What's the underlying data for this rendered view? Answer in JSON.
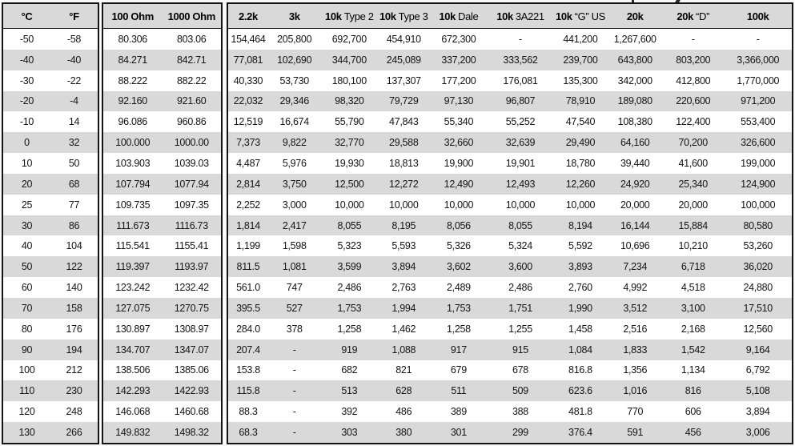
{
  "table": {
    "groups": [
      {
        "name": "temperature",
        "headers": [
          {
            "b": "°C",
            "r": ""
          },
          {
            "b": "°F",
            "r": ""
          }
        ],
        "col_start": 0,
        "col_count": 2
      },
      {
        "name": "rtd",
        "headers": [
          {
            "b": "100 Ohm",
            "r": ""
          },
          {
            "b": "1000 Ohm",
            "r": ""
          }
        ],
        "col_start": 2,
        "col_count": 2
      },
      {
        "name": "thermistor",
        "headers": [
          {
            "b": "2.2k",
            "r": ""
          },
          {
            "b": "3k",
            "r": ""
          },
          {
            "b": "10k",
            "r": "Type 2"
          },
          {
            "b": "10k",
            "r": "Type 3"
          },
          {
            "b": "10k",
            "r": "Dale"
          },
          {
            "b": "10k",
            "r": "3A221"
          },
          {
            "b": "10k",
            "r": "“G” US"
          },
          {
            "b": "20k",
            "r": ""
          },
          {
            "b": "20k",
            "r": "“D”"
          },
          {
            "b": "100k",
            "r": ""
          }
        ],
        "col_start": 4,
        "col_count": 10
      }
    ],
    "rows": [
      [
        "-50",
        "-58",
        "80.306",
        "803.06",
        "154,464",
        "205,800",
        "692,700",
        "454,910",
        "672,300",
        "-",
        "441,200",
        "1,267,600",
        "-",
        "-"
      ],
      [
        "-40",
        "-40",
        "84.271",
        "842.71",
        "77,081",
        "102,690",
        "344,700",
        "245,089",
        "337,200",
        "333,562",
        "239,700",
        "643,800",
        "803,200",
        "3,366,000"
      ],
      [
        "-30",
        "-22",
        "88.222",
        "882.22",
        "40,330",
        "53,730",
        "180,100",
        "137,307",
        "177,200",
        "176,081",
        "135,300",
        "342,000",
        "412,800",
        "1,770,000"
      ],
      [
        "-20",
        "-4",
        "92.160",
        "921.60",
        "22,032",
        "29,346",
        "98,320",
        "79,729",
        "97,130",
        "96,807",
        "78,910",
        "189,080",
        "220,600",
        "971,200"
      ],
      [
        "-10",
        "14",
        "96.086",
        "960.86",
        "12,519",
        "16,674",
        "55,790",
        "47,843",
        "55,340",
        "55,252",
        "47,540",
        "108,380",
        "122,400",
        "553,400"
      ],
      [
        "0",
        "32",
        "100.000",
        "1000.00",
        "7,373",
        "9,822",
        "32,770",
        "29,588",
        "32,660",
        "32,639",
        "29,490",
        "64,160",
        "70,200",
        "326,600"
      ],
      [
        "10",
        "50",
        "103.903",
        "1039.03",
        "4,487",
        "5,976",
        "19,930",
        "18,813",
        "19,900",
        "19,901",
        "18,780",
        "39,440",
        "41,600",
        "199,000"
      ],
      [
        "20",
        "68",
        "107.794",
        "1077.94",
        "2,814",
        "3,750",
        "12,500",
        "12,272",
        "12,490",
        "12,493",
        "12,260",
        "24,920",
        "25,340",
        "124,900"
      ],
      [
        "25",
        "77",
        "109.735",
        "1097.35",
        "2,252",
        "3,000",
        "10,000",
        "10,000",
        "10,000",
        "10,000",
        "10,000",
        "20,000",
        "20,000",
        "100,000"
      ],
      [
        "30",
        "86",
        "111.673",
        "1116.73",
        "1,814",
        "2,417",
        "8,055",
        "8,195",
        "8,056",
        "8,055",
        "8,194",
        "16,144",
        "15,884",
        "80,580"
      ],
      [
        "40",
        "104",
        "115.541",
        "1155.41",
        "1,199",
        "1,598",
        "5,323",
        "5,593",
        "5,326",
        "5,324",
        "5,592",
        "10,696",
        "10,210",
        "53,260"
      ],
      [
        "50",
        "122",
        "119.397",
        "1193.97",
        "811.5",
        "1,081",
        "3,599",
        "3,894",
        "3,602",
        "3,600",
        "3,893",
        "7,234",
        "6,718",
        "36,020"
      ],
      [
        "60",
        "140",
        "123.242",
        "1232.42",
        "561.0",
        "747",
        "2,486",
        "2,763",
        "2,489",
        "2,486",
        "2,760",
        "4,992",
        "4,518",
        "24,880"
      ],
      [
        "70",
        "158",
        "127.075",
        "1270.75",
        "395.5",
        "527",
        "1,753",
        "1,994",
        "1,753",
        "1,751",
        "1,990",
        "3,512",
        "3,100",
        "17,510"
      ],
      [
        "80",
        "176",
        "130.897",
        "1308.97",
        "284.0",
        "378",
        "1,258",
        "1,462",
        "1,258",
        "1,255",
        "1,458",
        "2,516",
        "2,168",
        "12,560"
      ],
      [
        "90",
        "194",
        "134.707",
        "1347.07",
        "207.4",
        "-",
        "919",
        "1,088",
        "917",
        "915",
        "1,084",
        "1,833",
        "1,542",
        "9,164"
      ],
      [
        "100",
        "212",
        "138.506",
        "1385.06",
        "153.8",
        "-",
        "682",
        "821",
        "679",
        "678",
        "816.8",
        "1,356",
        "1,134",
        "6,792"
      ],
      [
        "110",
        "230",
        "142.293",
        "1422.93",
        "115.8",
        "-",
        "513",
        "628",
        "511",
        "509",
        "623.6",
        "1,016",
        "816",
        "5,108"
      ],
      [
        "120",
        "248",
        "146.068",
        "1460.68",
        "88.3",
        "-",
        "392",
        "486",
        "389",
        "388",
        "481.8",
        "770",
        "606",
        "3,894"
      ],
      [
        "130",
        "266",
        "149.832",
        "1498.32",
        "68.3",
        "-",
        "303",
        "380",
        "301",
        "299",
        "376.4",
        "591",
        "456",
        "3,006"
      ]
    ],
    "colors": {
      "band_gray": "#d9d9d9",
      "row_white": "#ffffff",
      "border_black": "#141414",
      "text": "#141414"
    }
  }
}
